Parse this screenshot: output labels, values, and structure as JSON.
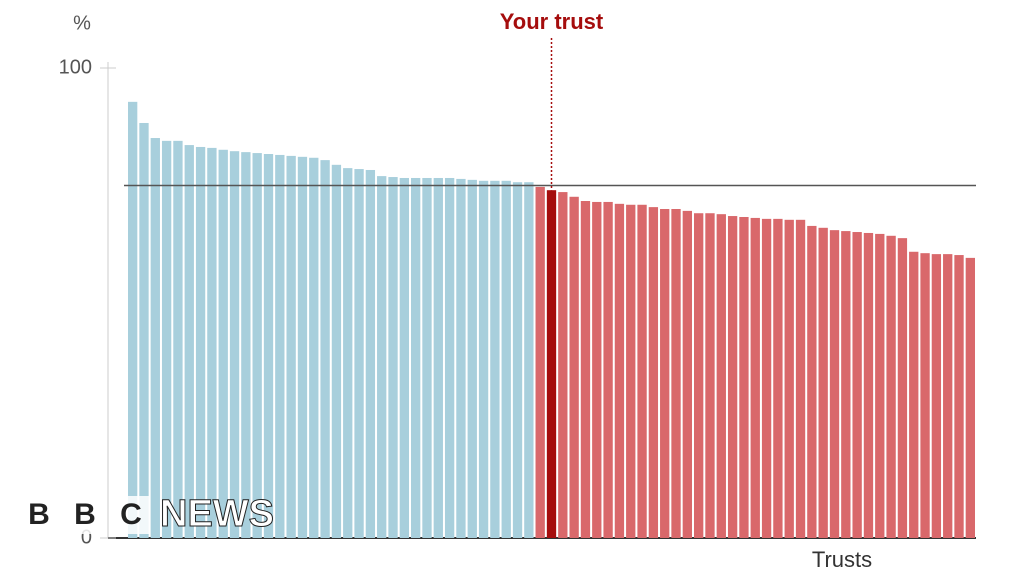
{
  "chart_data": {
    "type": "bar",
    "ylabel": "%",
    "xlabel": "Trusts",
    "annotation": "Your trust",
    "ylim": [
      0,
      100
    ],
    "yticks": [
      0,
      100
    ],
    "target": 75,
    "color_above": "#a8cfdc",
    "color_below": "#d9686b",
    "highlight_index": 37,
    "highlight_color": "#a50d0d",
    "values": [
      92.8,
      88.3,
      85.1,
      84.5,
      84.5,
      83.6,
      83.2,
      83.0,
      82.6,
      82.3,
      82.1,
      81.9,
      81.7,
      81.5,
      81.3,
      81.1,
      80.9,
      80.4,
      79.4,
      78.7,
      78.5,
      78.3,
      77.0,
      76.8,
      76.6,
      76.6,
      76.6,
      76.6,
      76.6,
      76.4,
      76.2,
      76.0,
      76.0,
      76.0,
      75.7,
      75.7,
      74.7,
      74.0,
      73.6,
      72.6,
      71.7,
      71.5,
      71.5,
      71.1,
      70.9,
      70.9,
      70.4,
      70.0,
      70.0,
      69.6,
      69.1,
      69.1,
      68.9,
      68.5,
      68.3,
      68.1,
      67.9,
      67.9,
      67.7,
      67.7,
      66.4,
      66.0,
      65.5,
      65.3,
      65.1,
      64.9,
      64.7,
      64.3,
      63.8,
      60.9,
      60.6,
      60.4,
      60.4,
      60.2,
      59.6
    ]
  },
  "logo": {
    "letters": [
      "B",
      "B",
      "C"
    ],
    "text": "NEWS"
  }
}
